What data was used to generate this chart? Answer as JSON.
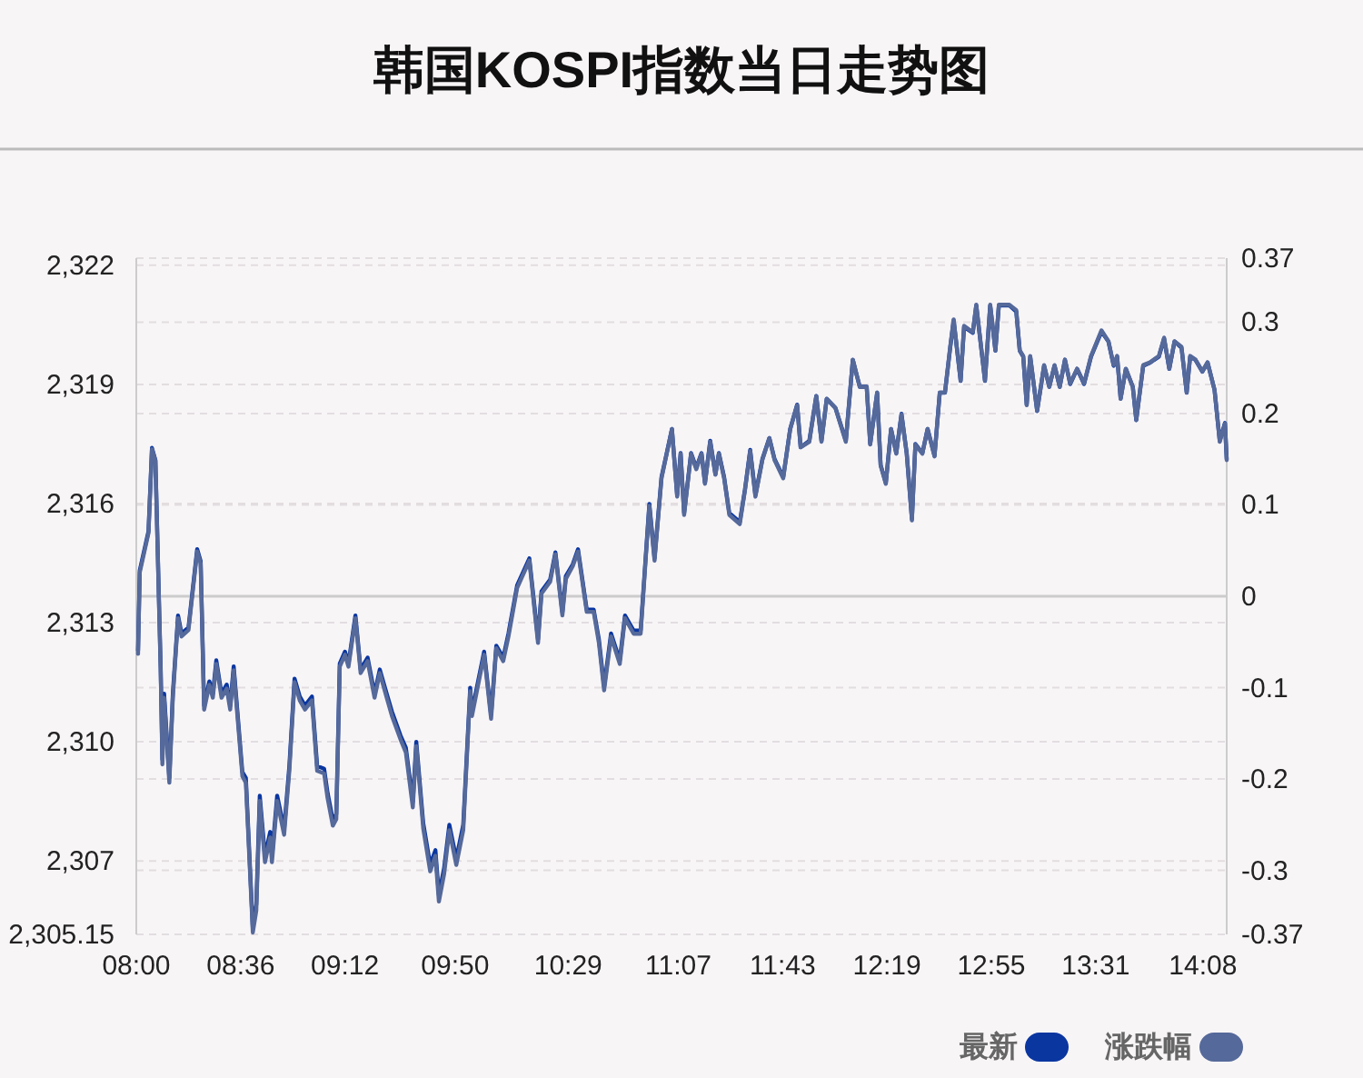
{
  "chart_data": {
    "type": "line",
    "title": "韩国KOSPI指数当日走势图",
    "x": [
      8.01,
      8.02,
      8.07,
      8.09,
      8.11,
      8.14,
      8.15,
      8.16,
      8.19,
      8.21,
      8.24,
      8.26,
      8.3,
      8.35,
      8.37,
      8.39,
      8.42,
      8.44,
      8.46,
      8.49,
      8.52,
      8.54,
      8.56,
      8.61,
      8.63,
      8.67,
      8.69,
      8.71,
      8.74,
      8.77,
      8.78,
      8.81,
      8.85,
      8.88,
      8.91,
      8.94,
      8.97,
      9.01,
      9.04,
      9.08,
      9.1,
      9.13,
      9.15,
      9.17,
      9.2,
      9.22,
      9.26,
      9.29,
      9.33,
      9.37,
      9.4,
      9.44,
      9.47,
      9.52,
      9.55,
      9.59,
      9.61,
      9.65,
      9.69,
      9.72,
      9.74,
      9.77,
      9.8,
      9.84,
      9.88,
      9.92,
      9.93,
      10.0,
      10.04,
      10.07,
      10.11,
      10.14,
      10.19,
      10.26,
      10.31,
      10.33,
      10.38,
      10.41,
      10.45,
      10.47,
      10.51,
      10.54,
      10.59,
      10.63,
      10.66,
      10.69,
      10.73,
      10.78,
      10.81,
      10.86,
      10.9,
      10.95,
      10.98,
      11.02,
      11.05,
      11.08,
      11.11,
      11.13,
      11.15,
      11.19,
      11.22,
      11.25,
      11.27,
      11.3,
      11.33,
      11.35,
      11.38,
      11.41,
      11.47,
      11.5,
      11.53,
      11.56,
      11.6,
      11.64,
      11.67,
      11.72,
      11.76,
      11.8,
      11.82,
      11.87,
      11.91,
      11.94,
      11.97,
      12.02,
      12.08,
      12.12,
      12.16,
      12.2,
      12.22,
      12.26,
      12.28,
      12.31,
      12.34,
      12.37,
      12.4,
      12.43,
      12.46,
      12.48,
      12.52,
      12.55,
      12.59,
      12.62,
      12.65,
      12.68,
      12.7,
      12.74,
      12.76,
      12.81,
      12.83,
      12.88,
      12.91,
      12.94,
      12.96,
      13.02,
      13.06,
      13.08,
      13.1,
      13.12,
      13.14,
      13.18,
      13.22,
      13.25,
      13.28,
      13.31,
      13.34,
      13.37,
      13.41,
      13.45,
      13.49,
      13.55,
      13.59,
      13.62,
      13.64,
      13.66,
      13.69,
      13.73,
      13.75,
      13.79,
      13.83,
      13.88,
      13.91,
      13.94,
      13.97,
      14.01,
      14.04,
      14.06,
      14.09,
      14.13,
      14.16,
      14.2,
      14.23,
      14.26,
      14.27
    ],
    "xlim": [
      8,
      14.27
    ],
    "xticks": [
      {
        "value": 8,
        "label": "08:00"
      },
      {
        "value": 8.6,
        "label": "08:36"
      },
      {
        "value": 9.2,
        "label": "09:12"
      },
      {
        "value": 9.8333,
        "label": "09:50"
      },
      {
        "value": 10.4833,
        "label": "10:29"
      },
      {
        "value": 11.1167,
        "label": "11:07"
      },
      {
        "value": 11.7167,
        "label": "11:43"
      },
      {
        "value": 12.3167,
        "label": "12:19"
      },
      {
        "value": 12.9167,
        "label": "12:55"
      },
      {
        "value": 13.5167,
        "label": "13:31"
      },
      {
        "value": 14.1333,
        "label": "14:08"
      }
    ],
    "ylim": [
      2305.15,
      2322.18
    ],
    "yticks": [
      {
        "value": 2305.15,
        "label": "2,305.15"
      },
      {
        "value": 2307,
        "label": "2,307"
      },
      {
        "value": 2310,
        "label": "2,310"
      },
      {
        "value": 2313,
        "label": "2,313"
      },
      {
        "value": 2316,
        "label": "2,316"
      },
      {
        "value": 2319,
        "label": "2,319"
      },
      {
        "value": 2322,
        "label": "2,322"
      }
    ],
    "y2lim": [
      -0.37,
      0.37
    ],
    "y2ticks": [
      -0.37,
      -0.3,
      -0.2,
      -0.1,
      0,
      0.1,
      0.2,
      0.3,
      0.37
    ],
    "series": [
      {
        "name": "最新",
        "color": "#0a36a0",
        "values": [
          2312.3,
          2314.32,
          2315.3,
          2317.4,
          2317.09,
          2311.9,
          2309.55,
          2311.21,
          2309.09,
          2311.21,
          2313.18,
          2312.73,
          2312.88,
          2314.85,
          2314.55,
          2310.91,
          2311.52,
          2311.21,
          2312.05,
          2311.21,
          2311.44,
          2310.91,
          2311.9,
          2309.24,
          2309.09,
          2305.3,
          2305.91,
          2308.64,
          2307.12,
          2307.73,
          2307.12,
          2308.64,
          2307.8,
          2309.39,
          2311.59,
          2311.14,
          2310.91,
          2311.14,
          2309.39,
          2309.32,
          2308.71,
          2308.03,
          2308.18,
          2311.97,
          2312.27,
          2311.97,
          2313.18,
          2311.82,
          2312.12,
          2311.21,
          2311.82,
          2311.21,
          2310.76,
          2310.15,
          2309.85,
          2308.49,
          2310.0,
          2307.95,
          2306.9,
          2307.27,
          2306.14,
          2306.82,
          2307.91,
          2307.05,
          2307.91,
          2311.36,
          2310.76,
          2312.27,
          2310.68,
          2312.42,
          2312.12,
          2312.73,
          2313.94,
          2314.62,
          2312.58,
          2313.79,
          2314.09,
          2314.77,
          2313.26,
          2314.17,
          2314.47,
          2314.85,
          2313.33,
          2313.33,
          2312.58,
          2311.39,
          2312.73,
          2312.05,
          2313.18,
          2312.8,
          2312.8,
          2315.99,
          2314.62,
          2316.67,
          2317.27,
          2317.88,
          2316.21,
          2317.27,
          2315.76,
          2317.27,
          2316.9,
          2317.27,
          2316.52,
          2317.58,
          2316.74,
          2317.27,
          2316.67,
          2315.76,
          2315.53,
          2316.36,
          2317.35,
          2316.21,
          2317.12,
          2317.65,
          2317.12,
          2316.67,
          2317.88,
          2318.49,
          2317.42,
          2317.58,
          2318.71,
          2317.58,
          2318.64,
          2318.41,
          2317.58,
          2319.62,
          2318.94,
          2318.94,
          2317.5,
          2318.79,
          2316.97,
          2316.52,
          2317.88,
          2317.27,
          2318.26,
          2317.27,
          2315.61,
          2317.5,
          2317.27,
          2317.88,
          2317.2,
          2318.79,
          2318.79,
          2319.92,
          2320.61,
          2319.09,
          2320.45,
          2320.3,
          2320.99,
          2319.09,
          2320.99,
          2319.85,
          2320.99,
          2320.99,
          2320.83,
          2319.85,
          2319.7,
          2318.49,
          2319.7,
          2318.33,
          2319.47,
          2318.94,
          2319.47,
          2318.94,
          2319.62,
          2319.01,
          2319.39,
          2319.01,
          2319.7,
          2320.33,
          2320.08,
          2319.47,
          2319.7,
          2318.64,
          2319.39,
          2318.94,
          2318.1,
          2319.47,
          2319.55,
          2319.7,
          2320.15,
          2319.39,
          2320.08,
          2319.92,
          2318.79,
          2319.7,
          2319.62,
          2319.32,
          2319.55,
          2318.86,
          2317.58,
          2318.03,
          2317.12
        ]
      },
      {
        "name": "涨跌幅",
        "color": "#55699a",
        "axis": "y2",
        "values": [
          -0.063,
          0.026,
          0.069,
          0.161,
          0.148,
          -0.081,
          -0.184,
          -0.111,
          -0.204,
          -0.111,
          -0.024,
          -0.044,
          -0.037,
          0.049,
          0.036,
          -0.124,
          -0.097,
          -0.111,
          -0.074,
          -0.111,
          -0.101,
          -0.124,
          -0.081,
          -0.197,
          -0.204,
          -0.368,
          -0.344,
          -0.224,
          -0.291,
          -0.264,
          -0.291,
          -0.224,
          -0.261,
          -0.191,
          -0.094,
          -0.114,
          -0.124,
          -0.114,
          -0.191,
          -0.194,
          -0.221,
          -0.251,
          -0.244,
          -0.077,
          -0.064,
          -0.077,
          -0.024,
          -0.084,
          -0.071,
          -0.111,
          -0.084,
          -0.111,
          -0.131,
          -0.157,
          -0.171,
          -0.231,
          -0.164,
          -0.254,
          -0.301,
          -0.284,
          -0.334,
          -0.304,
          -0.256,
          -0.294,
          -0.256,
          -0.104,
          -0.131,
          -0.064,
          -0.134,
          -0.057,
          -0.071,
          -0.044,
          0.009,
          0.039,
          -0.051,
          0.003,
          0.016,
          0.046,
          -0.021,
          0.019,
          0.033,
          0.049,
          -0.017,
          -0.017,
          -0.051,
          -0.103,
          -0.044,
          -0.074,
          -0.024,
          -0.041,
          -0.041,
          0.099,
          0.039,
          0.129,
          0.156,
          0.183,
          0.109,
          0.156,
          0.089,
          0.156,
          0.139,
          0.156,
          0.123,
          0.169,
          0.133,
          0.156,
          0.129,
          0.089,
          0.079,
          0.116,
          0.159,
          0.109,
          0.149,
          0.173,
          0.149,
          0.129,
          0.183,
          0.209,
          0.163,
          0.169,
          0.219,
          0.169,
          0.216,
          0.206,
          0.169,
          0.259,
          0.229,
          0.229,
          0.166,
          0.223,
          0.143,
          0.123,
          0.183,
          0.156,
          0.199,
          0.156,
          0.083,
          0.166,
          0.156,
          0.183,
          0.153,
          0.223,
          0.223,
          0.273,
          0.303,
          0.236,
          0.296,
          0.289,
          0.319,
          0.236,
          0.319,
          0.269,
          0.319,
          0.319,
          0.313,
          0.269,
          0.263,
          0.209,
          0.263,
          0.203,
          0.253,
          0.229,
          0.253,
          0.229,
          0.259,
          0.233,
          0.249,
          0.233,
          0.263,
          0.291,
          0.279,
          0.253,
          0.263,
          0.216,
          0.249,
          0.229,
          0.193,
          0.253,
          0.256,
          0.263,
          0.283,
          0.249,
          0.279,
          0.273,
          0.223,
          0.263,
          0.259,
          0.246,
          0.256,
          0.226,
          0.169,
          0.189,
          0.149
        ]
      }
    ],
    "ref_lines": [
      {
        "axis": "y2",
        "value": 0,
        "color": "#cccccc"
      }
    ],
    "grid": true,
    "legend": "bottom right"
  }
}
